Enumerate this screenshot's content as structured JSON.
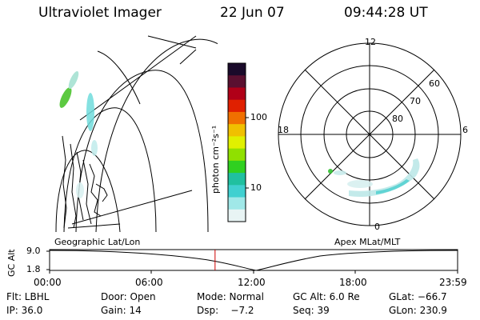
{
  "header": {
    "instrument": "Ultraviolet Imager",
    "date": "22 Jun 07",
    "time": "09:44:28 UT"
  },
  "geo_panel": {
    "label": "Geographic Lat/Lon"
  },
  "polar_panel": {
    "label": "Apex MLat/MLT",
    "mlt_labels": [
      "12",
      "18",
      "6",
      "0"
    ],
    "lat_labels": [
      "60",
      "70",
      "80"
    ]
  },
  "colorbar": {
    "unit_label": "photon cm⁻²s⁻¹",
    "ticks": [
      "100",
      "10"
    ],
    "scale": "log",
    "colors_top_to_bottom": [
      "#1a0a2a",
      "#5a1030",
      "#b00018",
      "#e02000",
      "#f07000",
      "#f0c000",
      "#e0f000",
      "#90e000",
      "#30d020",
      "#20c0a0",
      "#40d0d0",
      "#a0e8e8",
      "#e8f4f4"
    ]
  },
  "altitude_plot": {
    "ylabel": "GC Alt",
    "yticks": [
      "9.0",
      "1.8"
    ],
    "xticks": [
      "00:00",
      "06:00",
      "12:00",
      "18:00",
      "23:59"
    ],
    "current_time_marker": "09:44",
    "marker_color": "#cc0000"
  },
  "status": {
    "row1": {
      "flt": "Flt: LBHL",
      "door": "Door: Open",
      "mode": "Mode: Normal",
      "gcalt": "GC Alt: 6.0 Re",
      "glat": "GLat: −66.7"
    },
    "row2": {
      "ip": "IP: 36.0",
      "gain": "Gain: 14",
      "dsp": "Dsp:    −7.2",
      "seq": "Seq: 39",
      "glon": "GLon: 230.9"
    }
  }
}
